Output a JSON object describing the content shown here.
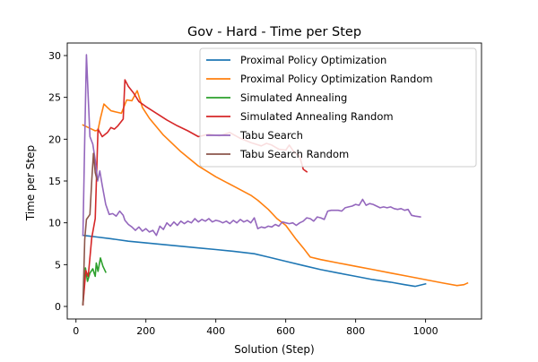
{
  "chart_data": {
    "type": "line",
    "title": "Gov - Hard - Time per Step",
    "xlabel": "Solution (Step)",
    "ylabel": "Time per Step",
    "xlim": [
      -25,
      1160
    ],
    "ylim": [
      -1.5,
      31.5
    ],
    "xticks": [
      0,
      200,
      400,
      600,
      800,
      1000
    ],
    "yticks": [
      0,
      5,
      10,
      15,
      20,
      25,
      30
    ],
    "grid": false,
    "legend_position": "top-right",
    "series": [
      {
        "name": "Proximal Policy Optimization",
        "color": "#1f77b4",
        "points": [
          [
            20,
            8.5
          ],
          [
            40,
            8.4
          ],
          [
            60,
            8.3
          ],
          [
            100,
            8.1
          ],
          [
            150,
            7.8
          ],
          [
            200,
            7.6
          ],
          [
            250,
            7.4
          ],
          [
            300,
            7.2
          ],
          [
            350,
            7.0
          ],
          [
            400,
            6.8
          ],
          [
            450,
            6.6
          ],
          [
            510,
            6.3
          ],
          [
            550,
            5.9
          ],
          [
            600,
            5.4
          ],
          [
            650,
            4.9
          ],
          [
            700,
            4.4
          ],
          [
            750,
            4.0
          ],
          [
            800,
            3.6
          ],
          [
            850,
            3.2
          ],
          [
            900,
            2.9
          ],
          [
            940,
            2.6
          ],
          [
            970,
            2.4
          ],
          [
            1000,
            2.7
          ]
        ]
      },
      {
        "name": "Proximal Policy Optimization Random",
        "color": "#ff7f0e",
        "points": [
          [
            20,
            21.7
          ],
          [
            30,
            21.5
          ],
          [
            40,
            21.3
          ],
          [
            55,
            21.0
          ],
          [
            63,
            21.1
          ],
          [
            70,
            22.5
          ],
          [
            80,
            24.2
          ],
          [
            90,
            23.8
          ],
          [
            100,
            23.4
          ],
          [
            130,
            23.1
          ],
          [
            145,
            24.7
          ],
          [
            160,
            24.6
          ],
          [
            175,
            25.8
          ],
          [
            190,
            23.8
          ],
          [
            210,
            22.5
          ],
          [
            250,
            20.5
          ],
          [
            300,
            18.5
          ],
          [
            350,
            16.8
          ],
          [
            400,
            15.5
          ],
          [
            450,
            14.4
          ],
          [
            500,
            13.3
          ],
          [
            520,
            12.7
          ],
          [
            550,
            11.6
          ],
          [
            575,
            10.5
          ],
          [
            600,
            9.7
          ],
          [
            630,
            8.0
          ],
          [
            650,
            7.0
          ],
          [
            670,
            5.9
          ],
          [
            700,
            5.6
          ],
          [
            750,
            5.2
          ],
          [
            800,
            4.8
          ],
          [
            850,
            4.4
          ],
          [
            900,
            4.0
          ],
          [
            950,
            3.6
          ],
          [
            1000,
            3.2
          ],
          [
            1050,
            2.8
          ],
          [
            1090,
            2.5
          ],
          [
            1110,
            2.6
          ],
          [
            1120,
            2.8
          ]
        ]
      },
      {
        "name": "Simulated Annealing",
        "color": "#2ca02c",
        "points": [
          [
            20,
            0.3
          ],
          [
            27,
            4.6
          ],
          [
            33,
            3.0
          ],
          [
            40,
            4.0
          ],
          [
            48,
            4.5
          ],
          [
            55,
            3.6
          ],
          [
            58,
            5.2
          ],
          [
            63,
            4.2
          ],
          [
            70,
            5.8
          ],
          [
            77,
            4.8
          ],
          [
            85,
            4.1
          ]
        ]
      },
      {
        "name": "Simulated Annealing Random",
        "color": "#d62728",
        "points": [
          [
            20,
            0.2
          ],
          [
            28,
            4.3
          ],
          [
            35,
            3.6
          ],
          [
            45,
            8.2
          ],
          [
            55,
            10.5
          ],
          [
            63,
            21.2
          ],
          [
            75,
            20.3
          ],
          [
            90,
            20.8
          ],
          [
            100,
            21.4
          ],
          [
            110,
            21.2
          ],
          [
            120,
            21.6
          ],
          [
            135,
            22.4
          ],
          [
            140,
            27.1
          ],
          [
            150,
            26.3
          ],
          [
            165,
            25.5
          ],
          [
            180,
            24.5
          ],
          [
            200,
            23.9
          ],
          [
            230,
            23.1
          ],
          [
            260,
            22.3
          ],
          [
            290,
            21.6
          ],
          [
            320,
            21.0
          ],
          [
            350,
            20.3
          ],
          [
            380,
            20.6
          ],
          [
            410,
            20.4
          ],
          [
            440,
            20.8
          ],
          [
            470,
            20.1
          ],
          [
            500,
            19.6
          ],
          [
            530,
            19.2
          ],
          [
            545,
            19.5
          ],
          [
            560,
            19.3
          ],
          [
            580,
            18.8
          ],
          [
            600,
            18.7
          ],
          [
            610,
            19.3
          ],
          [
            625,
            18.4
          ],
          [
            640,
            17.9
          ],
          [
            650,
            16.4
          ],
          [
            660,
            16.1
          ]
        ]
      },
      {
        "name": "Tabu Search",
        "color": "#9467bd",
        "points": [
          [
            20,
            8.5
          ],
          [
            25,
            20.0
          ],
          [
            30,
            30.1
          ],
          [
            35,
            25.0
          ],
          [
            40,
            20.3
          ],
          [
            48,
            19.4
          ],
          [
            55,
            17.5
          ],
          [
            62,
            15.0
          ],
          [
            68,
            16.2
          ],
          [
            75,
            14.5
          ],
          [
            85,
            12.2
          ],
          [
            95,
            11.0
          ],
          [
            105,
            11.1
          ],
          [
            115,
            10.8
          ],
          [
            125,
            11.4
          ],
          [
            135,
            10.9
          ],
          [
            140,
            10.3
          ],
          [
            150,
            9.8
          ],
          [
            160,
            9.5
          ],
          [
            170,
            9.1
          ],
          [
            180,
            9.5
          ],
          [
            190,
            9.0
          ],
          [
            200,
            9.3
          ],
          [
            210,
            8.9
          ],
          [
            220,
            9.1
          ],
          [
            230,
            8.5
          ],
          [
            240,
            9.6
          ],
          [
            250,
            9.2
          ],
          [
            260,
            10.0
          ],
          [
            270,
            9.6
          ],
          [
            280,
            10.1
          ],
          [
            290,
            9.7
          ],
          [
            300,
            10.2
          ],
          [
            310,
            9.9
          ],
          [
            320,
            10.2
          ],
          [
            330,
            10.0
          ],
          [
            340,
            10.5
          ],
          [
            350,
            10.1
          ],
          [
            360,
            10.4
          ],
          [
            370,
            10.2
          ],
          [
            380,
            10.5
          ],
          [
            390,
            10.1
          ],
          [
            400,
            10.3
          ],
          [
            410,
            10.2
          ],
          [
            420,
            10.0
          ],
          [
            430,
            10.2
          ],
          [
            440,
            9.9
          ],
          [
            450,
            10.3
          ],
          [
            460,
            10.0
          ],
          [
            470,
            10.4
          ],
          [
            480,
            10.1
          ],
          [
            490,
            10.3
          ],
          [
            500,
            10.0
          ],
          [
            510,
            10.6
          ],
          [
            520,
            9.3
          ],
          [
            530,
            9.5
          ],
          [
            540,
            9.4
          ],
          [
            550,
            9.6
          ],
          [
            560,
            9.5
          ],
          [
            570,
            9.8
          ],
          [
            580,
            9.6
          ],
          [
            590,
            10.1
          ],
          [
            600,
            10.0
          ],
          [
            610,
            9.9
          ],
          [
            620,
            10.0
          ],
          [
            630,
            9.7
          ],
          [
            640,
            10.0
          ],
          [
            650,
            10.2
          ],
          [
            660,
            10.6
          ],
          [
            670,
            10.5
          ],
          [
            680,
            10.2
          ],
          [
            690,
            10.7
          ],
          [
            700,
            10.6
          ],
          [
            710,
            10.4
          ],
          [
            720,
            11.4
          ],
          [
            730,
            11.5
          ],
          [
            740,
            11.5
          ],
          [
            750,
            11.5
          ],
          [
            760,
            11.4
          ],
          [
            770,
            11.8
          ],
          [
            780,
            11.9
          ],
          [
            790,
            12.0
          ],
          [
            800,
            12.2
          ],
          [
            810,
            12.1
          ],
          [
            820,
            12.8
          ],
          [
            830,
            12.1
          ],
          [
            840,
            12.3
          ],
          [
            850,
            12.2
          ],
          [
            860,
            12.0
          ],
          [
            870,
            11.8
          ],
          [
            880,
            11.9
          ],
          [
            890,
            11.8
          ],
          [
            900,
            11.9
          ],
          [
            910,
            11.7
          ],
          [
            920,
            11.6
          ],
          [
            930,
            11.7
          ],
          [
            940,
            11.5
          ],
          [
            950,
            11.6
          ],
          [
            960,
            10.9
          ],
          [
            970,
            10.8
          ],
          [
            985,
            10.7
          ]
        ]
      },
      {
        "name": "Tabu Search Random",
        "color": "#8c564b",
        "points": [
          [
            20,
            0.2
          ],
          [
            25,
            8.0
          ],
          [
            30,
            10.4
          ],
          [
            35,
            10.7
          ],
          [
            40,
            11.0
          ],
          [
            45,
            15.0
          ],
          [
            50,
            18.3
          ],
          [
            55,
            16.0
          ],
          [
            60,
            15.2
          ]
        ]
      }
    ]
  }
}
